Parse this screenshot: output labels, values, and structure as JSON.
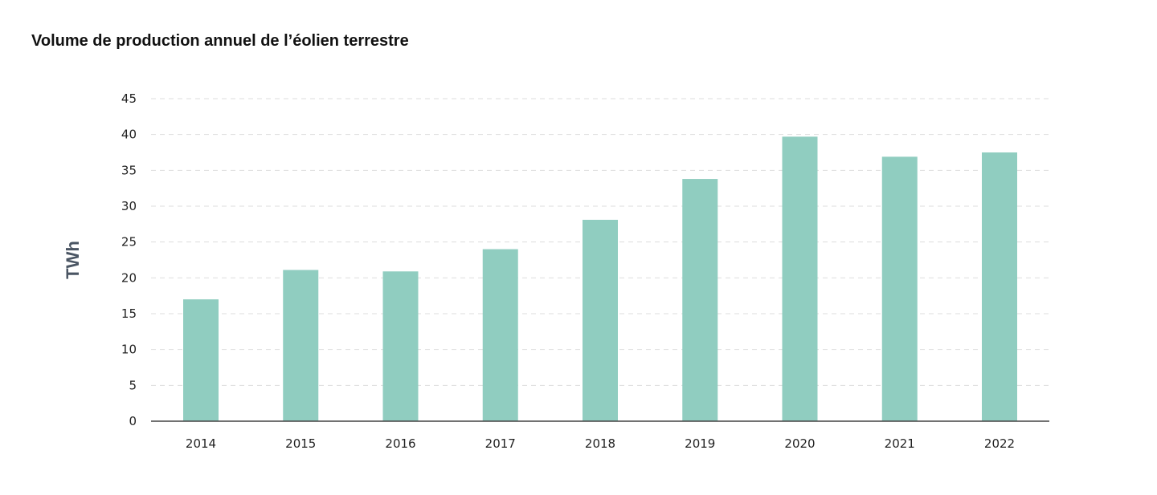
{
  "chart_data": {
    "type": "bar",
    "title": "Volume de production annuel de l’éolien terrestre",
    "xlabel": "",
    "ylabel": "TWh",
    "categories": [
      "2014",
      "2015",
      "2016",
      "2017",
      "2018",
      "2019",
      "2020",
      "2021",
      "2022"
    ],
    "values": [
      17.0,
      21.1,
      20.9,
      24.0,
      28.1,
      33.8,
      39.7,
      36.9,
      37.5
    ],
    "ylim": [
      0,
      45
    ],
    "yticks": [
      0,
      5,
      10,
      15,
      20,
      25,
      30,
      35,
      40,
      45
    ],
    "grid": true,
    "legend": "none",
    "colors": {
      "bar": "#90cdc0",
      "axis": "#444444",
      "grid": "#dddddd"
    }
  }
}
